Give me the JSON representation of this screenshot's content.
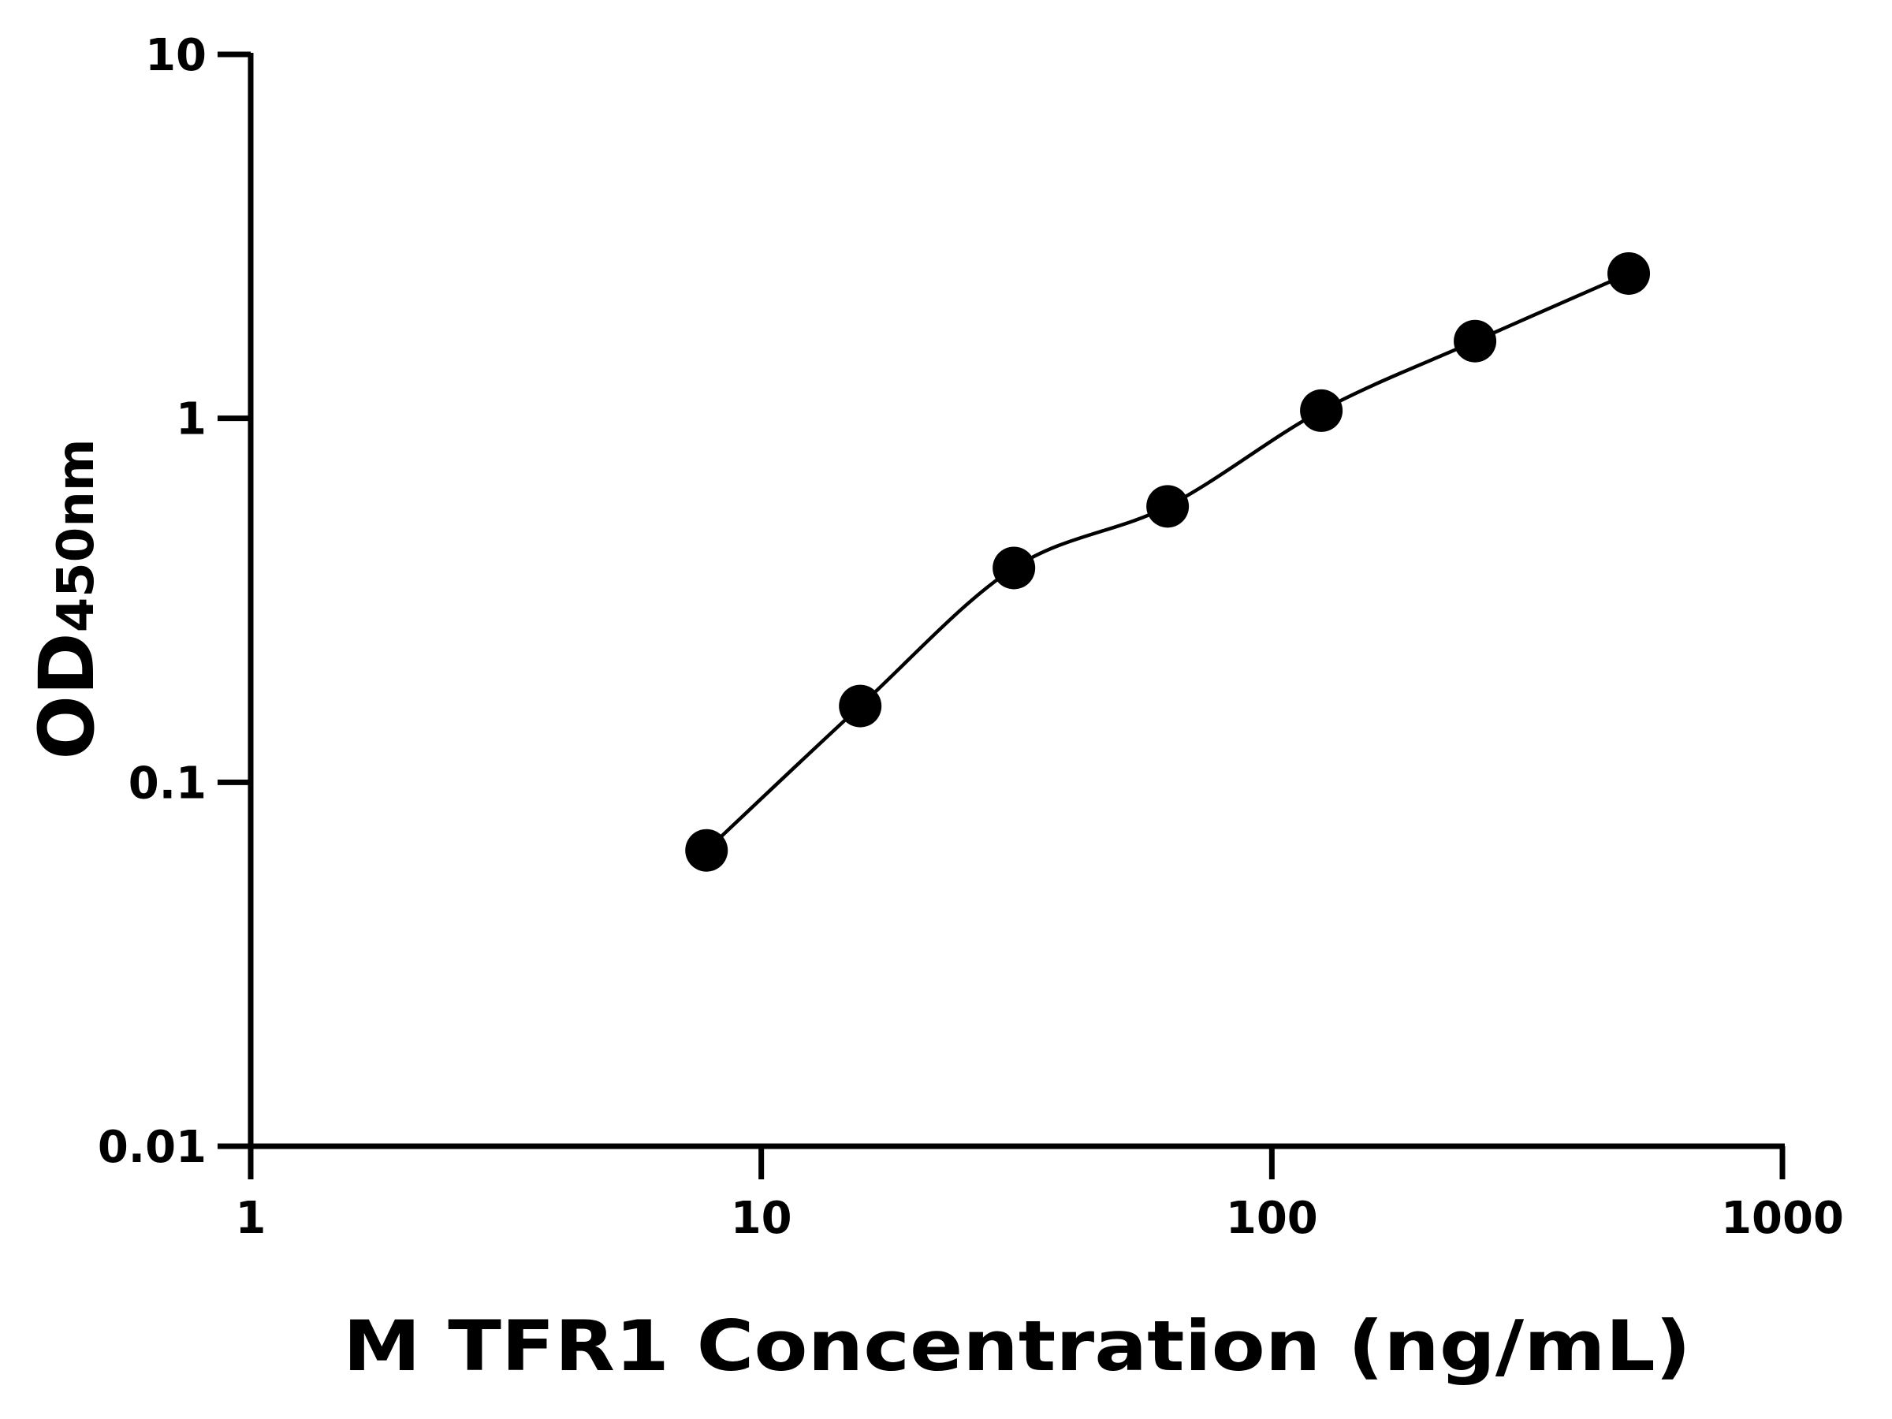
{
  "chart_data": {
    "type": "scatter",
    "title": "",
    "xlabel": "M TFR1 Concentration (ng/mL)",
    "ylabel": "OD",
    "ylabel_subscript": "450nm",
    "x_scale": "log",
    "y_scale": "log",
    "xlim": [
      1,
      1000
    ],
    "ylim": [
      0.01,
      10
    ],
    "x_ticks": [
      1,
      10,
      100,
      1000
    ],
    "x_tick_labels": [
      "1",
      "10",
      "100",
      "1000"
    ],
    "y_ticks": [
      0.01,
      0.1,
      1,
      10
    ],
    "y_tick_labels": [
      "0.01",
      "0.1",
      "1",
      "10"
    ],
    "grid": false,
    "marker_color": "#000000",
    "line_color": "#000000",
    "fit_curve": true,
    "points": [
      {
        "x": 7.8125,
        "y": 0.065
      },
      {
        "x": 15.625,
        "y": 0.162
      },
      {
        "x": 31.25,
        "y": 0.388
      },
      {
        "x": 62.5,
        "y": 0.573
      },
      {
        "x": 125,
        "y": 1.05
      },
      {
        "x": 250,
        "y": 1.63
      },
      {
        "x": 500,
        "y": 2.5
      }
    ]
  }
}
